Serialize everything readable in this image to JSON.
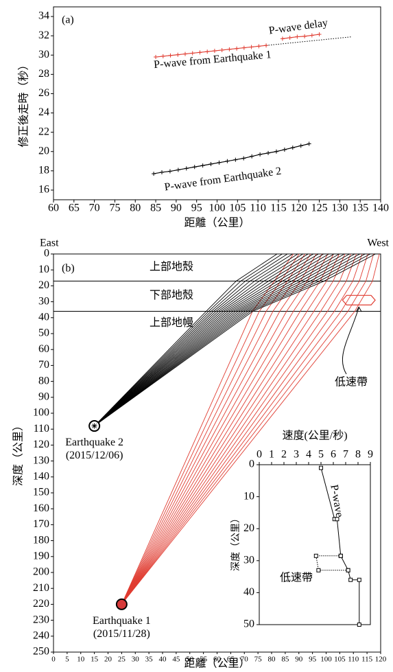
{
  "chart_data": [
    {
      "type": "line",
      "panel_label": "(a)",
      "xlabel": "距離（公里）",
      "ylabel": "修正後走時（秒）",
      "xlim": [
        60,
        140
      ],
      "xticks": [
        60,
        65,
        70,
        75,
        80,
        85,
        90,
        95,
        100,
        105,
        110,
        115,
        120,
        125,
        130,
        135,
        140
      ],
      "ylim": [
        15,
        35
      ],
      "yticks": [
        16,
        18,
        20,
        22,
        24,
        26,
        28,
        30,
        32,
        34
      ],
      "series": [
        {
          "name": "P-wave from Earthquake 1",
          "color": "#e03c31",
          "x": [
            85,
            86.8,
            88.6,
            90.4,
            92.2,
            94,
            95.8,
            97.6,
            99.4,
            101.2,
            103,
            104.8,
            106.6,
            108.4,
            110.2,
            112
          ],
          "values": [
            29.8,
            29.88,
            29.96,
            30.04,
            30.12,
            30.2,
            30.28,
            30.36,
            30.44,
            30.52,
            30.6,
            30.68,
            30.76,
            30.84,
            30.92,
            31.0
          ]
        },
        {
          "name": "P-wave delay",
          "color": "#e03c31",
          "x": [
            116,
            117.8,
            119.6,
            121.4,
            123.2,
            125
          ],
          "values": [
            31.7,
            31.8,
            31.9,
            31.95,
            32.05,
            32.15
          ]
        },
        {
          "name": "P-wave from Earthquake 2",
          "color": "#000000",
          "x": [
            84.5,
            86.5,
            88.5,
            90.5,
            92.5,
            94.5,
            96.5,
            98.5,
            100.5,
            102.5,
            104.5,
            106.5,
            108.5,
            110.5,
            112.5,
            114.5,
            116.5,
            118.5,
            120.5,
            122.5
          ],
          "values": [
            17.7,
            17.85,
            17.95,
            18.1,
            18.25,
            18.4,
            18.55,
            18.7,
            18.85,
            19.0,
            19.15,
            19.3,
            19.5,
            19.7,
            19.85,
            20.0,
            20.2,
            20.4,
            20.6,
            20.8
          ]
        }
      ],
      "trend": {
        "x": [
          112,
          133
        ],
        "values": [
          31.0,
          31.9
        ],
        "color": "#000000"
      }
    },
    {
      "type": "raypath",
      "panel_label": "(b)",
      "left_label": "East",
      "right_label": "West",
      "xlabel": "距離（公里）",
      "ylabel": "深度（公里）",
      "xlim": [
        0,
        120
      ],
      "xticks": [
        0,
        5,
        10,
        15,
        20,
        25,
        30,
        35,
        40,
        45,
        50,
        55,
        60,
        65,
        70,
        75,
        80,
        85,
        90,
        95,
        100,
        105,
        110,
        115,
        120
      ],
      "ylim": [
        0,
        250
      ],
      "yticks": [
        0,
        10,
        20,
        30,
        40,
        50,
        60,
        70,
        80,
        90,
        100,
        110,
        120,
        130,
        140,
        150,
        160,
        170,
        180,
        190,
        200,
        210,
        220,
        230,
        240,
        250
      ],
      "layers": [
        "上部地殼",
        "下部地殼",
        "上部地幔"
      ],
      "layer_boundaries": [
        17,
        36
      ],
      "ray_depths": [
        36,
        17,
        0
      ],
      "earthquakes": [
        {
          "name": "Earthquake 1",
          "date": "(2015/11/28)",
          "x": 25,
          "depth": 220,
          "color": "#e03c31",
          "fill": "#d63a3a",
          "ray_x": [
            [
              73,
              75.5,
              78,
              80.5,
              83,
              85.5,
              88,
              90.5,
              93,
              95.5,
              98,
              100.5,
              103,
              105.5,
              108,
              110.5
            ],
            [
              81,
              83.4,
              85.8,
              88.2,
              90.6,
              93,
              95.4,
              97.8,
              100.2,
              102.6,
              105,
              107.4,
              109.8,
              112.2,
              114.6,
              117
            ],
            [
              88,
              90.1,
              92.2,
              94.3,
              96.4,
              98.5,
              100.6,
              102.7,
              104.8,
              106.9,
              109,
              111.1,
              113.2,
              115.3,
              117.4,
              119.5
            ]
          ]
        },
        {
          "name": "Earthquake 2",
          "date": "(2015/12/06)",
          "x": 15,
          "depth": 108,
          "color": "#000000",
          "fill": "#ffffff",
          "ray_x": [
            [
              56,
              56.9,
              57.8,
              58.7,
              59.6,
              60.5,
              61.4,
              62.3,
              63.2,
              64.1,
              65,
              65.9,
              66.8,
              67.7,
              68.6,
              69.5,
              70.4,
              71.3,
              72.2,
              73.1
            ],
            [
              67,
              68.7,
              70.4,
              72.1,
              73.8,
              75.5,
              77.2,
              78.9,
              80.6,
              82.3,
              84,
              85.7,
              87.4,
              89.1,
              90.8,
              92.5,
              94.2,
              95.9,
              97.6,
              99.3
            ],
            [
              82,
              83.9,
              85.8,
              87.7,
              89.6,
              91.5,
              93.4,
              95.3,
              97.2,
              99.1,
              101,
              102.9,
              104.8,
              106.7,
              108.6,
              110.5,
              112.4,
              114.3,
              116.2,
              118.1
            ]
          ]
        }
      ],
      "low_velocity_zone": {
        "label": "低速帶",
        "x": [
          106,
          118
        ],
        "depth": [
          26,
          32
        ],
        "color": "#e03c31"
      }
    },
    {
      "type": "line",
      "title": "速度(公里/秒)",
      "ylabel": "深度（公里）",
      "xlim": [
        0,
        9
      ],
      "xticks": [
        0,
        1,
        2,
        3,
        4,
        5,
        6,
        7,
        8,
        9
      ],
      "ylim": [
        0,
        50
      ],
      "yticks": [
        0,
        10,
        20,
        30,
        40,
        50
      ],
      "series": [
        {
          "name": "P-wave",
          "color": "#000000",
          "x": [
            5.0,
            6.1,
            6.3,
            6.6,
            7.2,
            7.4,
            8.1,
            8.1
          ],
          "values": [
            1,
            17,
            17,
            28.5,
            33,
            36,
            36,
            50
          ]
        }
      ],
      "low_velocity": {
        "label": "低速帶",
        "x": [
          6.6,
          4.6,
          4.8,
          7.2
        ],
        "values": [
          28.5,
          28.5,
          33,
          33
        ]
      }
    }
  ]
}
